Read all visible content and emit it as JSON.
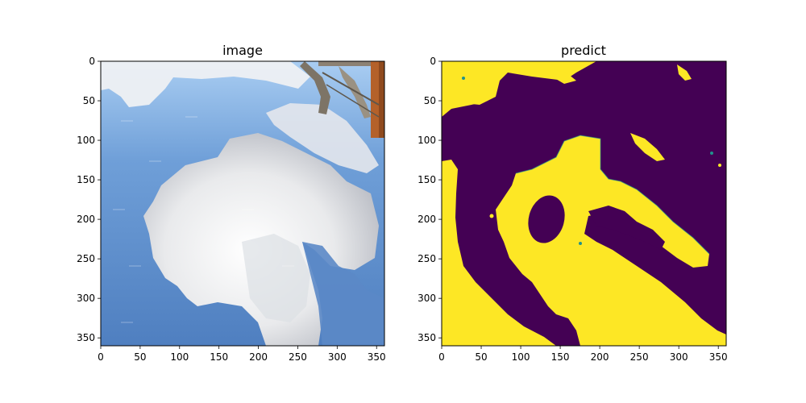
{
  "panels": [
    {
      "title": "image",
      "content": "photograph",
      "x_ticks": [
        "0",
        "50",
        "100",
        "150",
        "200",
        "250",
        "300",
        "350"
      ],
      "y_ticks": [
        "0",
        "50",
        "100",
        "150",
        "200",
        "250",
        "300",
        "350"
      ]
    },
    {
      "title": "predict",
      "content": "segmentation-mask",
      "x_ticks": [
        "0",
        "50",
        "100",
        "150",
        "200",
        "250",
        "300",
        "350"
      ],
      "y_ticks": [
        "0",
        "50",
        "100",
        "150",
        "200",
        "250",
        "300",
        "350"
      ]
    }
  ],
  "axis_extent": [
    0,
    360
  ],
  "colors": {
    "mask_background": "#440154",
    "mask_foreground": "#fde725",
    "mask_edge": "#21918c",
    "sky": "#6f9fd8",
    "cloud": "#f2f2f3"
  }
}
